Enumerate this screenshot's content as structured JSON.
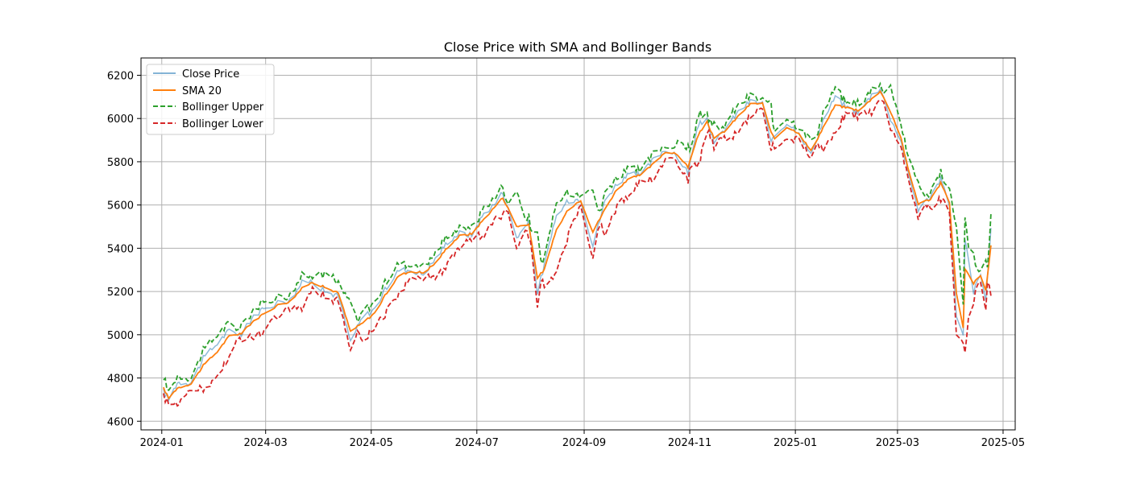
{
  "chart_data": {
    "type": "line",
    "title": "Close Price with SMA and Bollinger Bands",
    "xlabel": "",
    "ylabel": "",
    "grid": true,
    "legend_position": "top-left",
    "xlim": [
      "2023-12-20",
      "2025-05-08"
    ],
    "ylim": [
      4560,
      6280
    ],
    "x_ticks": [
      "2024-01",
      "2024-03",
      "2024-05",
      "2024-07",
      "2024-09",
      "2024-11",
      "2025-01",
      "2025-03",
      "2025-05"
    ],
    "y_ticks": [
      4600,
      4800,
      5000,
      5200,
      5400,
      5600,
      5800,
      6000,
      6200
    ],
    "colors": {
      "close": "#1f77b4",
      "sma": "#ff7f0e",
      "upper": "#2ca02c",
      "lower": "#d62728",
      "grid": "#b0b0b0",
      "axes": "#000000"
    },
    "series": [
      {
        "key": "close",
        "name": "Close Price",
        "style": "solid-light"
      },
      {
        "key": "sma",
        "name": "SMA 20",
        "style": "solid"
      },
      {
        "key": "upper",
        "name": "Bollinger Upper",
        "style": "dashed"
      },
      {
        "key": "lower",
        "name": "Bollinger Lower",
        "style": "dashed"
      }
    ],
    "anchors": {
      "dates": [
        "2024-01-02",
        "2024-01-05",
        "2024-01-10",
        "2024-01-18",
        "2024-01-25",
        "2024-02-02",
        "2024-02-09",
        "2024-02-16",
        "2024-02-23",
        "2024-03-01",
        "2024-03-08",
        "2024-03-15",
        "2024-03-22",
        "2024-03-28",
        "2024-04-04",
        "2024-04-12",
        "2024-04-19",
        "2024-04-26",
        "2024-05-03",
        "2024-05-10",
        "2024-05-17",
        "2024-05-24",
        "2024-05-31",
        "2024-06-07",
        "2024-06-14",
        "2024-06-21",
        "2024-06-28",
        "2024-07-05",
        "2024-07-12",
        "2024-07-16",
        "2024-07-24",
        "2024-07-31",
        "2024-08-05",
        "2024-08-09",
        "2024-08-16",
        "2024-08-23",
        "2024-08-30",
        "2024-09-06",
        "2024-09-13",
        "2024-09-20",
        "2024-09-27",
        "2024-10-04",
        "2024-10-11",
        "2024-10-18",
        "2024-10-25",
        "2024-10-31",
        "2024-11-06",
        "2024-11-11",
        "2024-11-15",
        "2024-11-22",
        "2024-11-29",
        "2024-12-06",
        "2024-12-13",
        "2024-12-18",
        "2024-12-20",
        "2024-12-27",
        "2025-01-03",
        "2025-01-10",
        "2025-01-17",
        "2025-01-24",
        "2025-01-31",
        "2025-02-07",
        "2025-02-14",
        "2025-02-19",
        "2025-02-25",
        "2025-03-03",
        "2025-03-07",
        "2025-03-13",
        "2025-03-20",
        "2025-03-26",
        "2025-03-31",
        "2025-04-04",
        "2025-04-08",
        "2025-04-09",
        "2025-04-14",
        "2025-04-18",
        "2025-04-21",
        "2025-04-24"
      ],
      "close": [
        4740,
        4700,
        4780,
        4780,
        4890,
        4960,
        5020,
        5000,
        5090,
        5120,
        5150,
        5160,
        5240,
        5250,
        5200,
        5180,
        4970,
        5080,
        5120,
        5220,
        5300,
        5300,
        5280,
        5350,
        5430,
        5470,
        5460,
        5560,
        5610,
        5660,
        5450,
        5520,
        5200,
        5320,
        5550,
        5620,
        5630,
        5410,
        5620,
        5700,
        5740,
        5740,
        5810,
        5860,
        5820,
        5750,
        5970,
        6000,
        5880,
        5960,
        6030,
        6080,
        6070,
        5880,
        5920,
        5980,
        5940,
        5830,
        5990,
        6100,
        6050,
        6030,
        6110,
        6140,
        6000,
        5900,
        5750,
        5580,
        5640,
        5720,
        5600,
        5080,
        4990,
        5440,
        5200,
        5280,
        5160,
        5480
      ],
      "sma": [
        4760,
        4710,
        4740,
        4770,
        4840,
        4900,
        4980,
        5010,
        5050,
        5090,
        5130,
        5150,
        5200,
        5240,
        5230,
        5200,
        5040,
        5040,
        5090,
        5180,
        5260,
        5290,
        5290,
        5320,
        5390,
        5450,
        5470,
        5520,
        5590,
        5620,
        5530,
        5500,
        5300,
        5290,
        5450,
        5560,
        5620,
        5510,
        5560,
        5660,
        5710,
        5740,
        5780,
        5840,
        5840,
        5790,
        5900,
        5980,
        5920,
        5940,
        6000,
        6060,
        6070,
        5960,
        5900,
        5950,
        5930,
        5860,
        5940,
        6040,
        6050,
        6040,
        6080,
        6120,
        6050,
        5920,
        5780,
        5620,
        5620,
        5690,
        5620,
        5250,
        5050,
        5230,
        5260,
        5270,
        5230,
        5370
      ]
    }
  }
}
